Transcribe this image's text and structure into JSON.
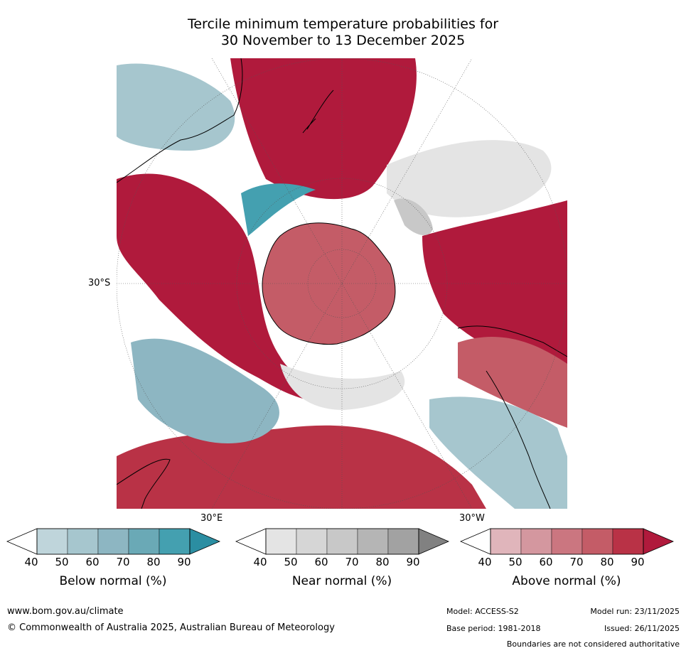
{
  "title": {
    "line1": "Tercile minimum temperature probabilities for",
    "line2": "30 November to 13 December 2025"
  },
  "map": {
    "lat_label": "30°S",
    "lon_label_east": "30°E",
    "lon_label_west": "30°W",
    "projection": "south-polar-stereographic",
    "colors": {
      "below": [
        "#ffffff",
        "#bfd5db",
        "#a6c6ce",
        "#8db6c2",
        "#6aa9b6",
        "#44a0b0",
        "#2b8ea2"
      ],
      "near": [
        "#ffffff",
        "#e4e4e4",
        "#d6d6d6",
        "#c8c8c8",
        "#b5b5b5",
        "#a2a2a2",
        "#818181"
      ],
      "above": [
        "#ffffff",
        "#e0b5bb",
        "#d4979f",
        "#cb7680",
        "#c45c67",
        "#b93246",
        "#b01a3c"
      ]
    }
  },
  "chart_data": {
    "type": "heatmap",
    "title": "Tercile minimum temperature probabilities for 30 November to 13 December 2025",
    "colorbars": [
      {
        "name": "Below normal (%)",
        "ticks": [
          40,
          50,
          60,
          70,
          80,
          90
        ],
        "extend": "both"
      },
      {
        "name": "Near normal (%)",
        "ticks": [
          40,
          50,
          60,
          70,
          80,
          90
        ],
        "extend": "both"
      },
      {
        "name": "Above normal (%)",
        "ticks": [
          40,
          50,
          60,
          70,
          80,
          90
        ],
        "extend": "both"
      }
    ],
    "axis_labels": {
      "latitude": "30°S",
      "longitude": [
        "30°E",
        "30°W"
      ]
    }
  },
  "footer": {
    "url": "www.bom.gov.au/climate",
    "copyright": "© Commonwealth of Australia 2025, Australian Bureau of Meteorology",
    "model": "Model: ACCESS-S2",
    "base_period": "Base period: 1981-2018",
    "model_run": "Model run: 23/11/2025",
    "issued": "Issued: 26/11/2025",
    "disclaimer": "Boundaries are not considered authoritative"
  }
}
